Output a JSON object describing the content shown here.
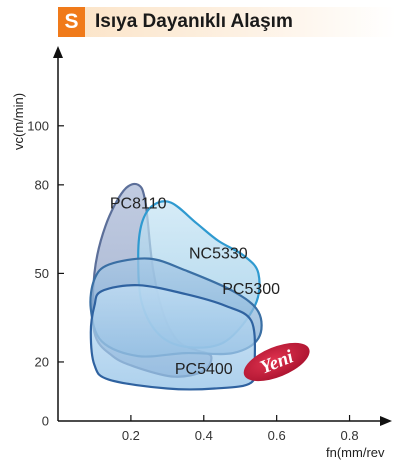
{
  "header": {
    "badge": "S",
    "title": "Isıya Dayanıklı Alaşım"
  },
  "colors": {
    "accent": "#f07a1a",
    "new_badge": "#c8193a"
  },
  "chart_data": {
    "type": "area",
    "xlabel": "fn(mm/rev",
    "ylabel": "vc(m/min)",
    "xlim": [
      0,
      0.9
    ],
    "ylim": [
      0,
      125
    ],
    "x_ticks": [
      {
        "value": 0.2,
        "label": "0.2"
      },
      {
        "value": 0.4,
        "label": "0.4"
      },
      {
        "value": 0.6,
        "label": "0.6"
      },
      {
        "value": 0.8,
        "label": "0.8"
      }
    ],
    "y_ticks": [
      {
        "value": 0,
        "label": "0"
      },
      {
        "value": 20,
        "label": "20"
      },
      {
        "value": 50,
        "label": "50"
      },
      {
        "value": 80,
        "label": "80"
      },
      {
        "value": 100,
        "label": "100"
      }
    ],
    "regions": [
      {
        "name": "PC8110",
        "label": "PC8110",
        "points": [
          [
            0.18,
            78
          ],
          [
            0.22,
            80
          ],
          [
            0.24,
            74
          ],
          [
            0.26,
            52
          ],
          [
            0.29,
            36
          ],
          [
            0.33,
            27
          ],
          [
            0.38,
            24
          ],
          [
            0.42,
            22
          ],
          [
            0.4,
            17
          ],
          [
            0.32,
            15
          ],
          [
            0.22,
            18
          ],
          [
            0.15,
            22
          ],
          [
            0.1,
            30
          ],
          [
            0.1,
            50
          ],
          [
            0.13,
            66
          ]
        ],
        "fill": "#8ea2c6",
        "stroke": "#5c6f99",
        "label_at": [
          0.22,
          72
        ]
      },
      {
        "name": "NC5330",
        "label": "NC5330",
        "points": [
          [
            0.26,
            73
          ],
          [
            0.31,
            74
          ],
          [
            0.38,
            67
          ],
          [
            0.44,
            61
          ],
          [
            0.51,
            56
          ],
          [
            0.55,
            50
          ],
          [
            0.54,
            39
          ],
          [
            0.46,
            27
          ],
          [
            0.36,
            25
          ],
          [
            0.28,
            29
          ],
          [
            0.23,
            40
          ],
          [
            0.22,
            56
          ],
          [
            0.23,
            67
          ]
        ],
        "fill": "#9ecde8",
        "stroke": "#2f9ad0",
        "label_at": [
          0.44,
          55
        ]
      },
      {
        "name": "PC5300",
        "label": "PC5300",
        "points": [
          [
            0.14,
            53
          ],
          [
            0.25,
            55
          ],
          [
            0.35,
            51
          ],
          [
            0.48,
            44
          ],
          [
            0.55,
            37
          ],
          [
            0.55,
            28
          ],
          [
            0.48,
            23
          ],
          [
            0.35,
            23
          ],
          [
            0.22,
            22
          ],
          [
            0.12,
            27
          ],
          [
            0.09,
            38
          ],
          [
            0.1,
            48
          ]
        ],
        "fill": "#8cb4d8",
        "stroke": "#3a6fa4",
        "label_at": [
          0.53,
          43
        ]
      },
      {
        "name": "PC5400",
        "label": "PC5400",
        "points": [
          [
            0.12,
            44
          ],
          [
            0.22,
            46
          ],
          [
            0.35,
            43
          ],
          [
            0.46,
            39
          ],
          [
            0.53,
            34
          ],
          [
            0.54,
            21
          ],
          [
            0.53,
            13
          ],
          [
            0.43,
            11
          ],
          [
            0.3,
            11
          ],
          [
            0.14,
            14
          ],
          [
            0.1,
            19
          ],
          [
            0.09,
            30
          ],
          [
            0.1,
            39
          ]
        ],
        "fill": "#a8cfee",
        "stroke": "#2f62a0",
        "label_at": [
          0.4,
          16
        ]
      }
    ],
    "annotation": {
      "text": "Yeni",
      "at": [
        0.6,
        20
      ],
      "fill": "#c8193a"
    }
  }
}
